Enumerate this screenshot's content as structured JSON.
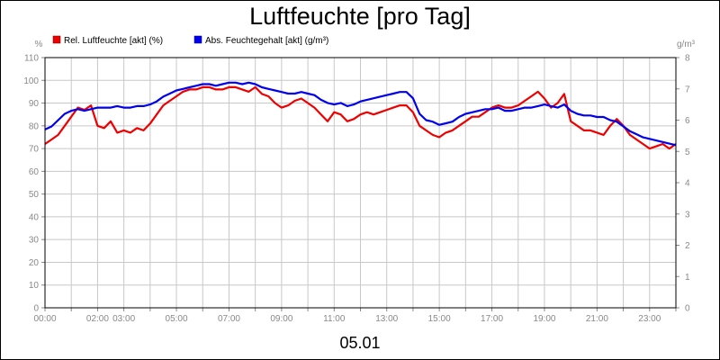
{
  "chart_data": {
    "type": "line",
    "title": "Luftfeuchte [pro Tag]",
    "date_label": "05.01",
    "y_left_unit": "%",
    "y_right_unit": "g/m³",
    "y_left_range": [
      0,
      110
    ],
    "y_right_range": [
      0,
      8
    ],
    "y_left_ticks": [
      0,
      10,
      20,
      30,
      40,
      50,
      60,
      70,
      80,
      90,
      100,
      110
    ],
    "y_right_ticks": [
      0,
      1,
      2,
      3,
      4,
      5,
      6,
      7,
      8
    ],
    "x_range_hours": [
      0,
      24
    ],
    "x_tick_labels": [
      {
        "h": 0,
        "label": "00:00"
      },
      {
        "h": 2,
        "label": "02:00"
      },
      {
        "h": 3,
        "label": "03:00"
      },
      {
        "h": 5,
        "label": "05:00"
      },
      {
        "h": 7,
        "label": "07:00"
      },
      {
        "h": 9,
        "label": "09:00"
      },
      {
        "h": 11,
        "label": "11:00"
      },
      {
        "h": 13,
        "label": "13:00"
      },
      {
        "h": 15,
        "label": "15:00"
      },
      {
        "h": 17,
        "label": "17:00"
      },
      {
        "h": 19,
        "label": "19:00"
      },
      {
        "h": 21,
        "label": "21:00"
      },
      {
        "h": 23,
        "label": "23:00"
      }
    ],
    "grid": true,
    "legend_position": "top-left",
    "series": [
      {
        "name": "Rel. Luftfeuchte [akt] (%)",
        "axis": "left",
        "color": "#ee0000",
        "x": [
          0.0,
          0.25,
          0.5,
          0.75,
          1.0,
          1.25,
          1.5,
          1.75,
          2.0,
          2.25,
          2.5,
          2.75,
          3.0,
          3.25,
          3.5,
          3.75,
          4.0,
          4.25,
          4.5,
          4.75,
          5.0,
          5.25,
          5.5,
          5.75,
          6.0,
          6.25,
          6.5,
          6.75,
          7.0,
          7.25,
          7.5,
          7.75,
          8.0,
          8.25,
          8.5,
          8.75,
          9.0,
          9.25,
          9.5,
          9.75,
          10.0,
          10.25,
          10.5,
          10.75,
          11.0,
          11.25,
          11.5,
          11.75,
          12.0,
          12.25,
          12.5,
          12.75,
          13.0,
          13.25,
          13.5,
          13.75,
          14.0,
          14.25,
          14.5,
          14.75,
          15.0,
          15.25,
          15.5,
          15.75,
          16.0,
          16.25,
          16.5,
          16.75,
          17.0,
          17.25,
          17.5,
          17.75,
          18.0,
          18.25,
          18.5,
          18.75,
          19.0,
          19.25,
          19.5,
          19.75,
          20.0,
          20.25,
          20.5,
          20.75,
          21.0,
          21.25,
          21.5,
          21.75,
          22.0,
          22.25,
          22.5,
          22.75,
          23.0,
          23.25,
          23.5,
          23.75,
          24.0
        ],
        "values": [
          72,
          74,
          76,
          80,
          84,
          88,
          87,
          89,
          80,
          79,
          82,
          77,
          78,
          77,
          79,
          78,
          81,
          85,
          89,
          91,
          93,
          95,
          96,
          96,
          97,
          97,
          96,
          96,
          97,
          97,
          96,
          95,
          97,
          94,
          93,
          90,
          88,
          89,
          91,
          92,
          90,
          88,
          85,
          82,
          86,
          85,
          82,
          83,
          85,
          86,
          85,
          86,
          87,
          88,
          89,
          89,
          86,
          80,
          78,
          76,
          75,
          77,
          78,
          80,
          82,
          84,
          84,
          86,
          88,
          89,
          88,
          88,
          89,
          91,
          93,
          95,
          92,
          88,
          90,
          94,
          82,
          80,
          78,
          78,
          77,
          76,
          80,
          83,
          80,
          76,
          74,
          72,
          70,
          71,
          72,
          70,
          72
        ]
      },
      {
        "name": "Abs. Feuchtegehalt [akt] (g/m³)",
        "axis": "right",
        "color": "#0000ee",
        "x": [
          0.0,
          0.25,
          0.5,
          0.75,
          1.0,
          1.25,
          1.5,
          1.75,
          2.0,
          2.25,
          2.5,
          2.75,
          3.0,
          3.25,
          3.5,
          3.75,
          4.0,
          4.25,
          4.5,
          4.75,
          5.0,
          5.25,
          5.5,
          5.75,
          6.0,
          6.25,
          6.5,
          6.75,
          7.0,
          7.25,
          7.5,
          7.75,
          8.0,
          8.25,
          8.5,
          8.75,
          9.0,
          9.25,
          9.5,
          9.75,
          10.0,
          10.25,
          10.5,
          10.75,
          11.0,
          11.25,
          11.5,
          11.75,
          12.0,
          12.25,
          12.5,
          12.75,
          13.0,
          13.25,
          13.5,
          13.75,
          14.0,
          14.25,
          14.5,
          14.75,
          15.0,
          15.25,
          15.5,
          15.75,
          16.0,
          16.25,
          16.5,
          16.75,
          17.0,
          17.25,
          17.5,
          17.75,
          18.0,
          18.25,
          18.5,
          18.75,
          19.0,
          19.25,
          19.5,
          19.75,
          20.0,
          20.25,
          20.5,
          20.75,
          21.0,
          21.25,
          21.5,
          21.75,
          22.0,
          22.25,
          22.5,
          22.75,
          23.0,
          23.25,
          23.5,
          23.75,
          24.0
        ],
        "values": [
          5.7,
          5.8,
          6.0,
          6.2,
          6.3,
          6.35,
          6.3,
          6.35,
          6.4,
          6.4,
          6.4,
          6.45,
          6.4,
          6.4,
          6.45,
          6.45,
          6.5,
          6.6,
          6.75,
          6.85,
          6.95,
          7.0,
          7.05,
          7.1,
          7.15,
          7.15,
          7.1,
          7.15,
          7.2,
          7.2,
          7.15,
          7.2,
          7.15,
          7.05,
          7.0,
          6.95,
          6.9,
          6.85,
          6.85,
          6.9,
          6.85,
          6.8,
          6.65,
          6.55,
          6.5,
          6.55,
          6.45,
          6.5,
          6.6,
          6.65,
          6.7,
          6.75,
          6.8,
          6.85,
          6.9,
          6.9,
          6.7,
          6.2,
          6.0,
          5.95,
          5.85,
          5.9,
          5.95,
          6.1,
          6.2,
          6.25,
          6.3,
          6.35,
          6.35,
          6.4,
          6.3,
          6.3,
          6.35,
          6.4,
          6.4,
          6.45,
          6.5,
          6.45,
          6.4,
          6.5,
          6.3,
          6.2,
          6.15,
          6.15,
          6.1,
          6.1,
          6.0,
          5.95,
          5.8,
          5.65,
          5.55,
          5.45,
          5.4,
          5.35,
          5.3,
          5.25,
          5.2
        ]
      }
    ]
  }
}
